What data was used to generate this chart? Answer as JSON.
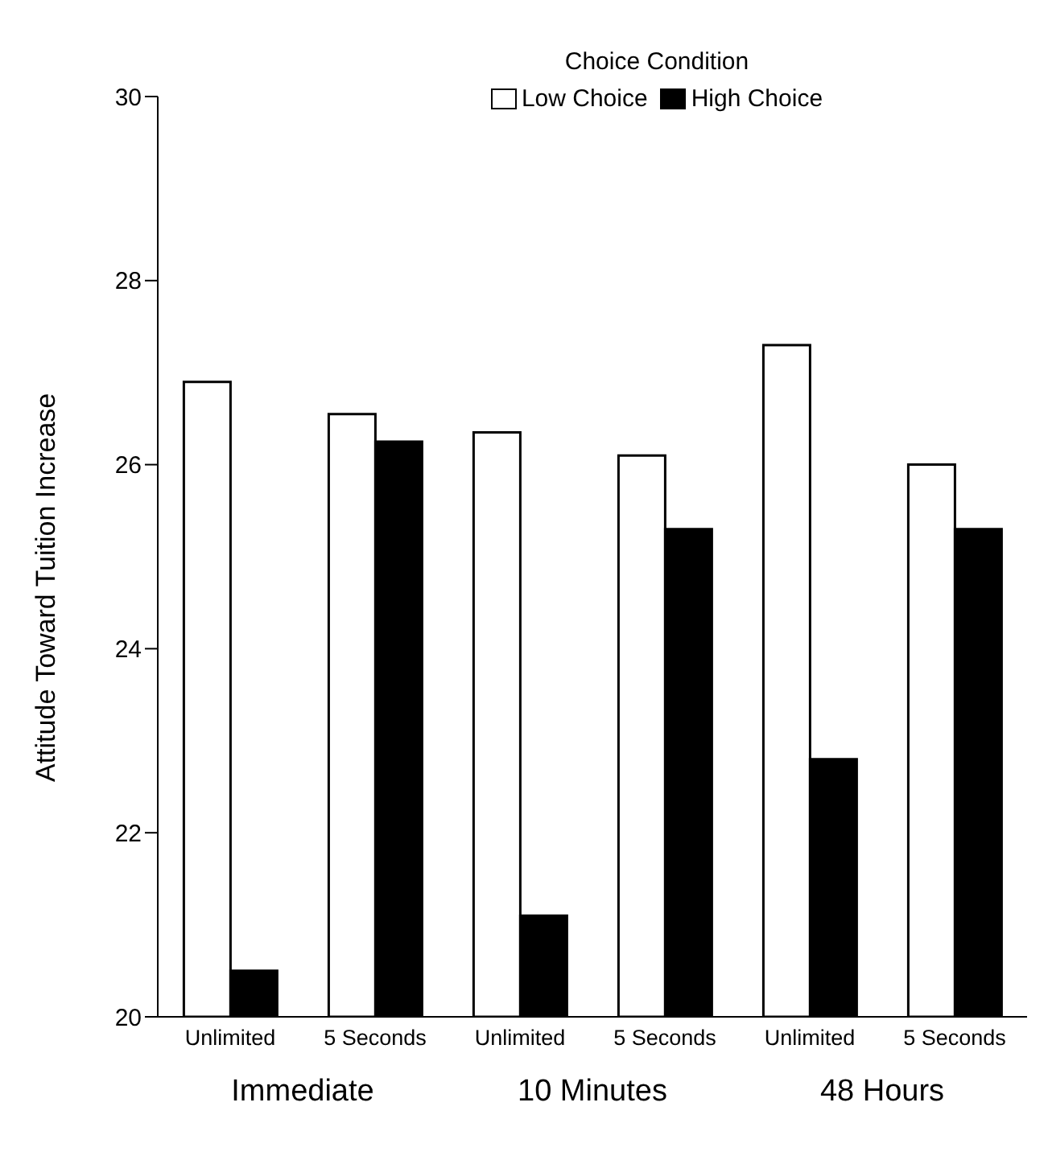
{
  "chart_data": {
    "type": "bar",
    "ylabel": "Attitude Toward Tuition Increase",
    "legend_title": "Choice Condition",
    "categories": [
      "Unlimited",
      "5 Seconds",
      "Unlimited",
      "5 Seconds",
      "Unlimited",
      "5 Seconds"
    ],
    "series": [
      {
        "name": "Low Choice",
        "color": "#ffffff",
        "values": [
          26.9,
          26.55,
          26.35,
          26.1,
          27.3,
          26.0
        ]
      },
      {
        "name": "High Choice",
        "color": "#000000",
        "values": [
          20.5,
          26.25,
          21.1,
          25.3,
          22.8,
          25.3
        ]
      }
    ],
    "ylim": [
      20,
      30
    ],
    "yticks": [
      20,
      22,
      24,
      26,
      28,
      30
    ],
    "grid": false,
    "legend": "top",
    "annotations": [
      "Immediate",
      "10 Minutes",
      "48 Hours"
    ]
  }
}
